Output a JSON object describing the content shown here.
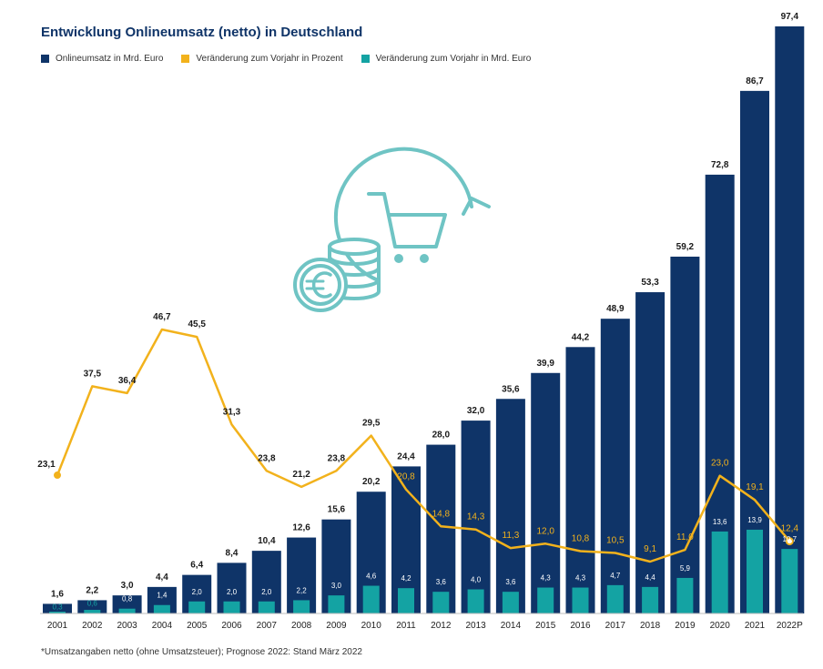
{
  "title": "Entwicklung Onlineumsatz (netto) in Deutschland",
  "legend": [
    {
      "label": "Onlineumsatz in Mrd. Euro",
      "color": "#0f3468"
    },
    {
      "label": "Veränderung zum Vorjahr in Prozent",
      "color": "#f2b21c"
    },
    {
      "label": "Veränderung zum Vorjahr in Mrd. Euro",
      "color": "#14a3a3"
    }
  ],
  "footnote": "*Umsatzangaben netto (ohne Umsatzsteuer); Prognose 2022: Stand März 2022",
  "icon": "shopping-cart-euro-coins-icon",
  "chart_data": {
    "type": "bar",
    "categories": [
      "2001",
      "2002",
      "2003",
      "2004",
      "2005",
      "2006",
      "2007",
      "2008",
      "2009",
      "2010",
      "2011",
      "2012",
      "2013",
      "2014",
      "2015",
      "2016",
      "2017",
      "2018",
      "2019",
      "2020",
      "2021",
      "2022P"
    ],
    "series": [
      {
        "name": "Onlineumsatz in Mrd. Euro",
        "type": "bar",
        "values": [
          1.6,
          2.2,
          3.0,
          4.4,
          6.4,
          8.4,
          10.4,
          12.6,
          15.6,
          20.2,
          24.4,
          28.0,
          32.0,
          35.6,
          39.9,
          44.2,
          48.9,
          53.3,
          59.2,
          72.8,
          86.7,
          97.4
        ],
        "labels": [
          "1,6",
          "2,2",
          "3,0",
          "4,4",
          "6,4",
          "8,4",
          "10,4",
          "12,6",
          "15,6",
          "20,2",
          "24,4",
          "28,0",
          "32,0",
          "35,6",
          "39,9",
          "44,2",
          "48,9",
          "53,3",
          "59,2",
          "72,8",
          "86,7",
          "97,4"
        ]
      },
      {
        "name": "Veränderung zum Vorjahr in Mrd. Euro",
        "type": "bar",
        "values": [
          0.3,
          0.6,
          0.8,
          1.4,
          2.0,
          2.0,
          2.0,
          2.2,
          3.0,
          4.6,
          4.2,
          3.6,
          4.0,
          3.6,
          4.3,
          4.3,
          4.7,
          4.4,
          5.9,
          13.6,
          13.9,
          10.7
        ],
        "labels": [
          "0,3",
          "0,6",
          "0,8",
          "1,4",
          "2,0",
          "2,0",
          "2,0",
          "2,2",
          "3,0",
          "4,6",
          "4,2",
          "3,6",
          "4,0",
          "3,6",
          "4,3",
          "4,3",
          "4,7",
          "4,4",
          "5,9",
          "13,6",
          "13,9",
          "10,7"
        ]
      },
      {
        "name": "Veränderung zum Vorjahr in Prozent",
        "type": "line",
        "values": [
          23.1,
          37.5,
          36.4,
          46.7,
          45.5,
          31.3,
          23.8,
          21.2,
          23.8,
          29.5,
          20.8,
          14.8,
          14.3,
          11.3,
          12.0,
          10.8,
          10.5,
          9.1,
          11.0,
          23.0,
          19.1,
          12.4
        ],
        "labels": [
          "23,1",
          "37,5",
          "36,4",
          "46,7",
          "45,5",
          "31,3",
          "23,8",
          "21,2",
          "23,8",
          "29,5",
          "20,8",
          "14,8",
          "14,3",
          "11,3",
          "12,0",
          "10,8",
          "10,5",
          "9,1",
          "11,0",
          "23,0",
          "19,1",
          "12,4"
        ]
      }
    ]
  }
}
